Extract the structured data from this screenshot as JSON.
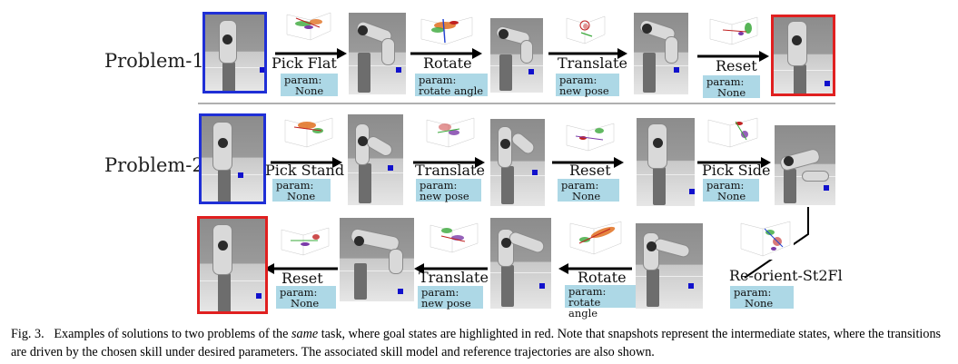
{
  "figure": {
    "row_labels": [
      "Problem-1",
      "Problem-2"
    ],
    "problem1": [
      {
        "skill": "Pick Flat",
        "param_label": "param:",
        "param_value": "None"
      },
      {
        "skill": "Rotate",
        "param_label": "param:",
        "param_value": "rotate angle"
      },
      {
        "skill": "Translate",
        "param_label": "param:",
        "param_value": "new pose"
      },
      {
        "skill": "Reset",
        "param_label": "param:",
        "param_value": "None"
      }
    ],
    "problem2_row1": [
      {
        "skill": "Pick Stand",
        "param_label": "param:",
        "param_value": "None"
      },
      {
        "skill": "Translate",
        "param_label": "param:",
        "param_value": "new pose"
      },
      {
        "skill": "Reset",
        "param_label": "param:",
        "param_value": "None"
      },
      {
        "skill": "Pick Side",
        "param_label": "param:",
        "param_value": "None"
      }
    ],
    "problem2_row2": [
      {
        "skill": "Re-orient-St2Fl",
        "param_label": "param:",
        "param_value": "None"
      },
      {
        "skill": "Rotate",
        "param_label": "param:",
        "param_value": "rotate angle"
      },
      {
        "skill": "Translate",
        "param_label": "param:",
        "param_value": "new pose"
      },
      {
        "skill": "Reset",
        "param_label": "param:",
        "param_value": "None"
      }
    ],
    "colors": {
      "initial_state_border": "#1f2fd6",
      "goal_state_border": "#e02020",
      "param_box": "#add8e6"
    }
  },
  "caption": {
    "label": "Fig. 3.",
    "text_before": "Examples of solutions to two problems of the ",
    "emphasis": "same",
    "text_after": " task, where goal states are highlighted in red. Note that snapshots represent the intermediate states, where the transitions are driven by the chosen skill under desired parameters. The associated skill model and reference trajectories are also shown."
  }
}
